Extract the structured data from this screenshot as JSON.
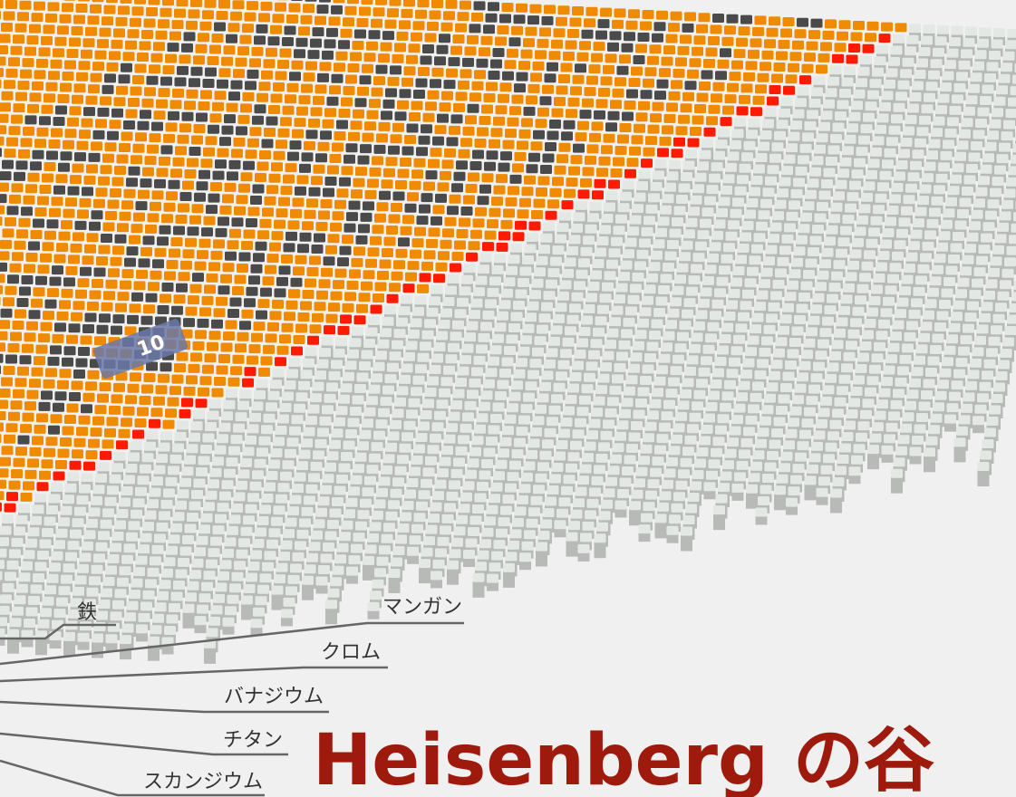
{
  "labels": [
    "鉄",
    "マンガン",
    "クロム",
    "バナジウム",
    "チタン",
    "スカンジウム"
  ],
  "title": "Heisenberg の谷",
  "marker": "10"
}
